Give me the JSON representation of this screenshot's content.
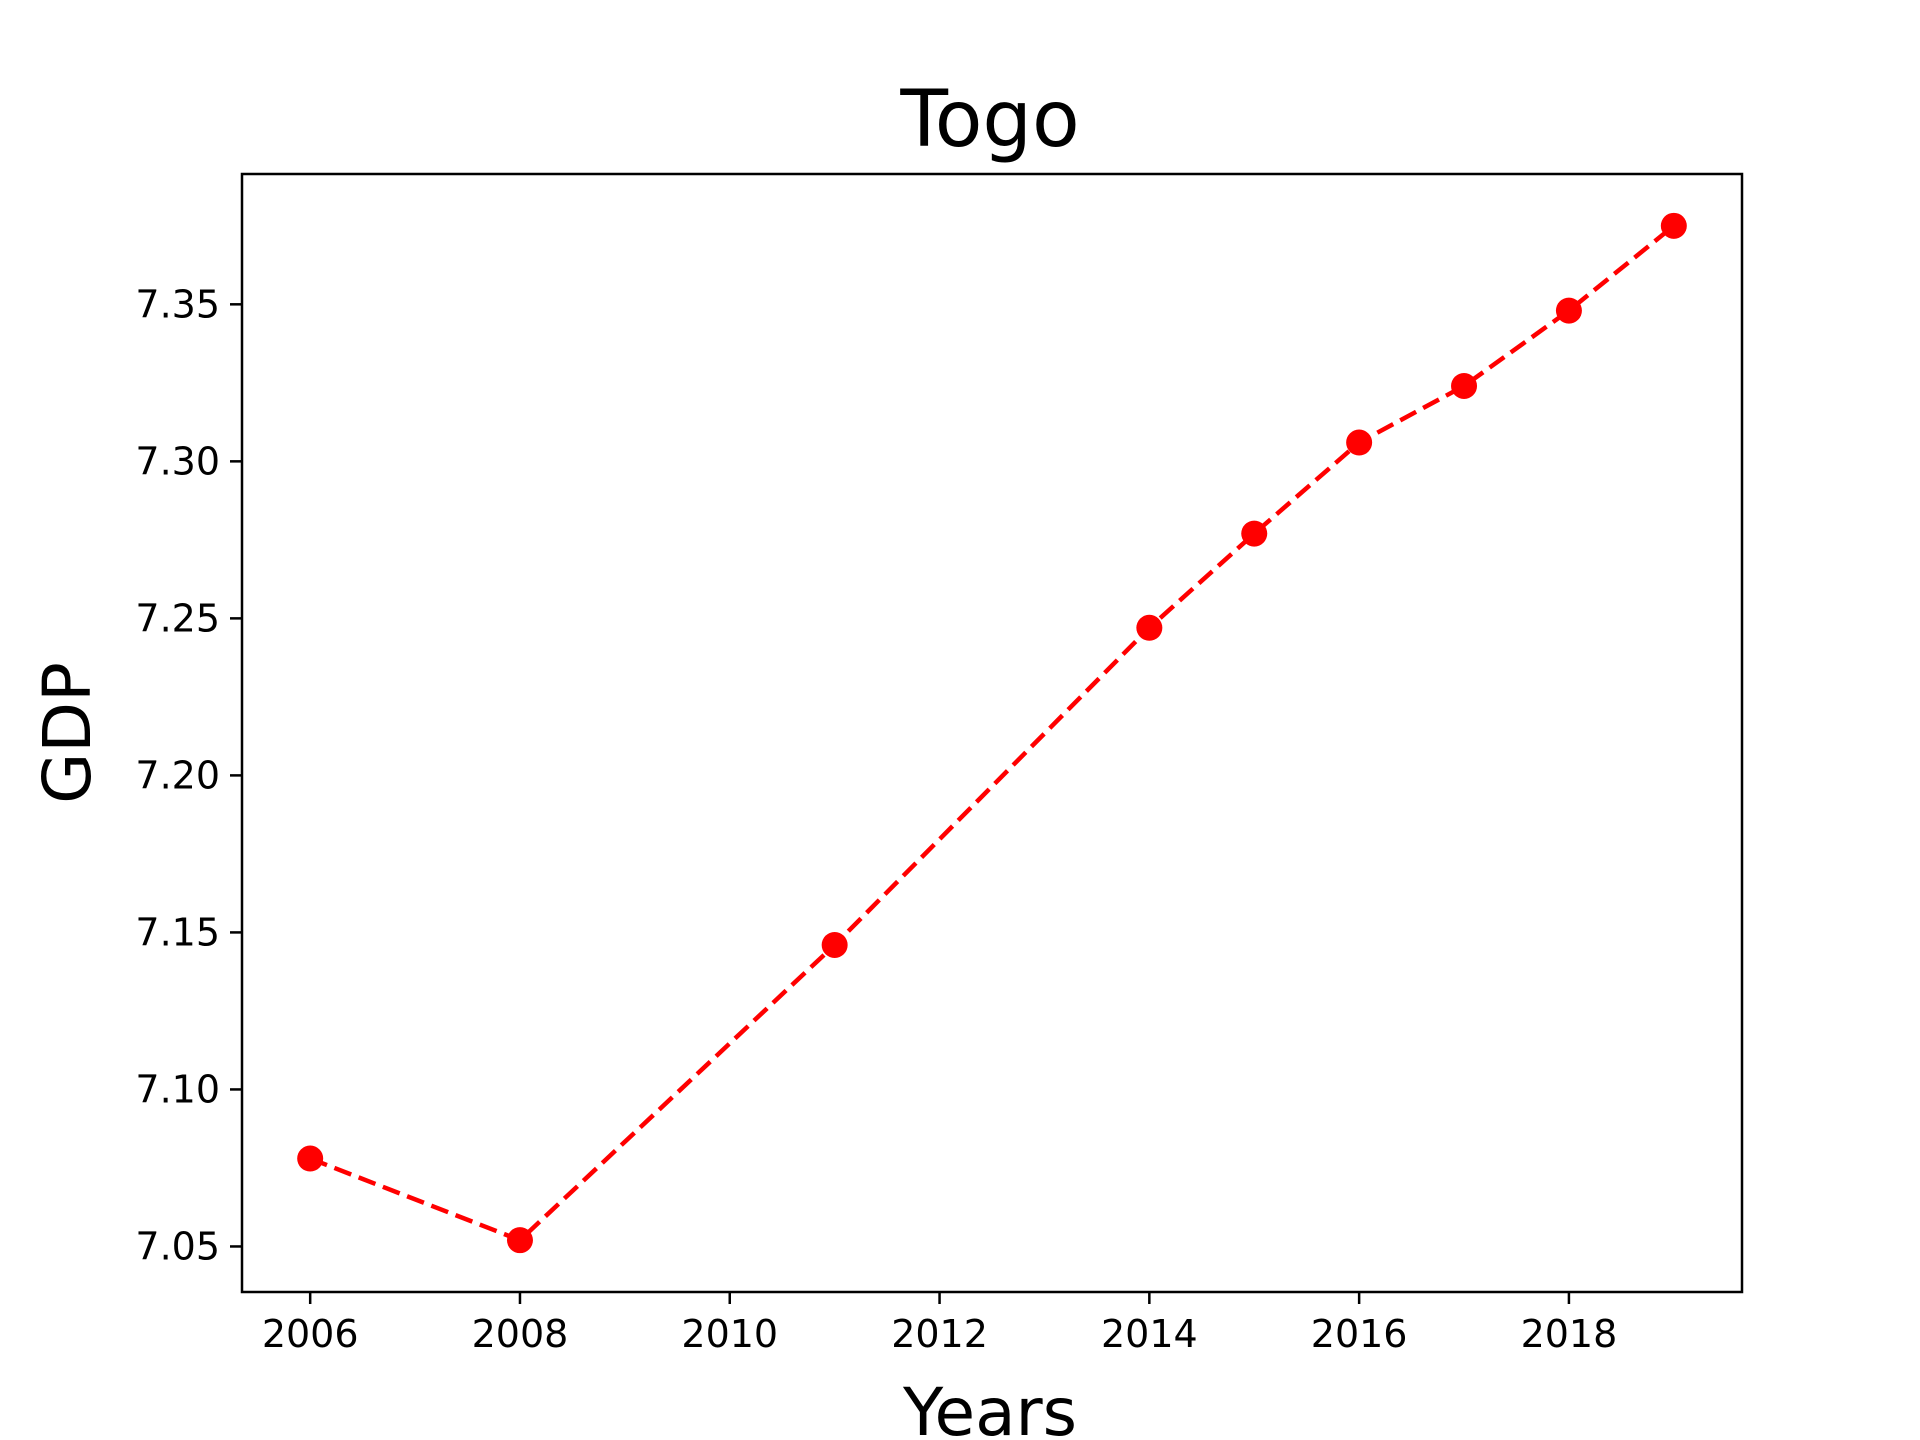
{
  "chart_data": {
    "type": "line",
    "title": "Togo",
    "xlabel": "Years",
    "ylabel": "GDP",
    "xlim": [
      2005.35,
      2019.65
    ],
    "ylim": [
      7.0355,
      7.3915
    ],
    "x_ticks": [
      2006,
      2008,
      2010,
      2012,
      2014,
      2016,
      2018
    ],
    "x_tick_labels": [
      "2006",
      "2008",
      "2010",
      "2012",
      "2014",
      "2016",
      "2018"
    ],
    "y_ticks": [
      7.05,
      7.1,
      7.15,
      7.2,
      7.25,
      7.3,
      7.35
    ],
    "y_tick_labels": [
      "7.05",
      "7.10",
      "7.15",
      "7.20",
      "7.25",
      "7.30",
      "7.35"
    ],
    "grid": false,
    "series": [
      {
        "x": [
          2006,
          2008,
          2011,
          2014,
          2015,
          2016,
          2017,
          2018,
          2019
        ],
        "y": [
          7.078,
          7.052,
          7.146,
          7.247,
          7.277,
          7.306,
          7.324,
          7.348,
          7.375
        ],
        "color": "#ff0000",
        "line_style": "dashed",
        "marker": "circle"
      }
    ]
  }
}
